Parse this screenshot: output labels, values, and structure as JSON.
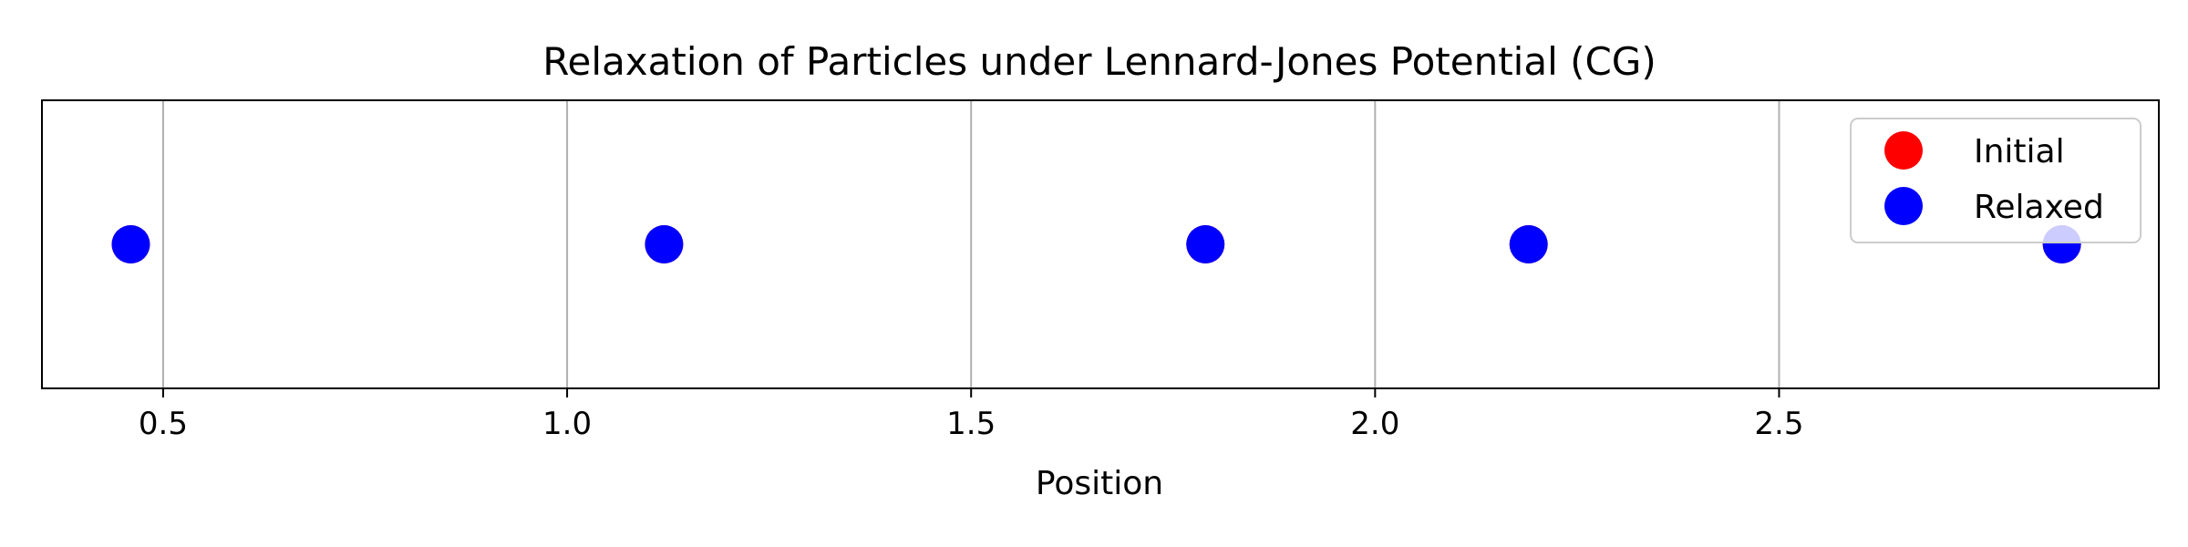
{
  "chart_data": {
    "type": "scatter",
    "title": "Relaxation of Particles under Lennard-Jones Potential (CG)",
    "xlabel": "Position",
    "ylabel": "",
    "xlim": [
      0.35,
      2.97
    ],
    "ylim": [
      -1,
      1
    ],
    "xticks": [
      0.5,
      1.0,
      1.5,
      2.0,
      2.5
    ],
    "xtick_labels": [
      "0.5",
      "1.0",
      "1.5",
      "2.0",
      "2.5"
    ],
    "grid": "x-axis vertical lines",
    "legend_position": "upper right",
    "series": [
      {
        "name": "Initial",
        "color": "#ff0000",
        "points": [
          {
            "x": 0.46,
            "y": 0
          },
          {
            "x": 1.12,
            "y": 0
          },
          {
            "x": 1.79,
            "y": 0
          },
          {
            "x": 2.19,
            "y": 0
          },
          {
            "x": 2.85,
            "y": 0
          }
        ]
      },
      {
        "name": "Relaxed",
        "color": "#0000ff",
        "points": [
          {
            "x": 0.46,
            "y": 0
          },
          {
            "x": 1.12,
            "y": 0
          },
          {
            "x": 1.79,
            "y": 0
          },
          {
            "x": 2.19,
            "y": 0
          },
          {
            "x": 2.85,
            "y": 0
          }
        ]
      }
    ]
  }
}
